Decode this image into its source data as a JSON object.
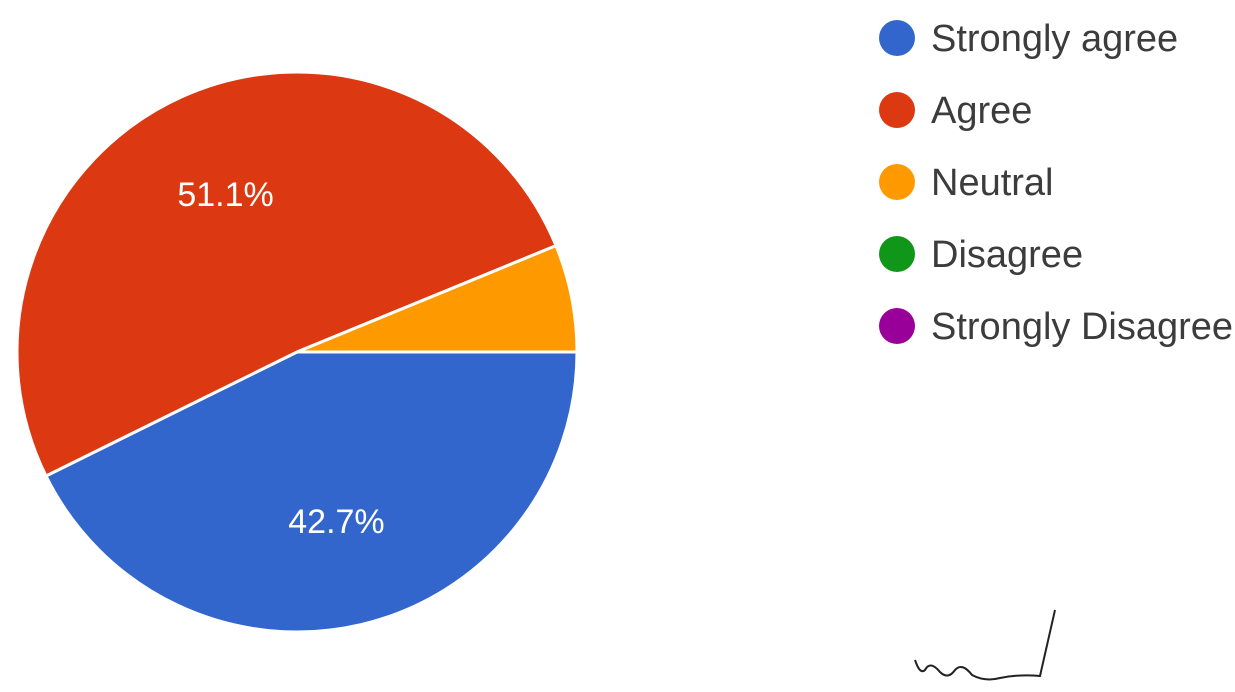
{
  "chart_data": {
    "type": "pie",
    "title": "",
    "categories": [
      "Strongly agree",
      "Agree",
      "Neutral",
      "Disagree",
      "Strongly Disagree"
    ],
    "values": [
      42.7,
      51.1,
      6.2,
      0,
      0
    ],
    "colors": [
      "#3366cc",
      "#dc3912",
      "#ff9900",
      "#109618",
      "#990099"
    ],
    "labels": [
      "42.7%",
      "51.1%",
      "",
      "",
      ""
    ],
    "legend_position": "right"
  },
  "annotation": {
    "kind": "handwritten-signature"
  }
}
